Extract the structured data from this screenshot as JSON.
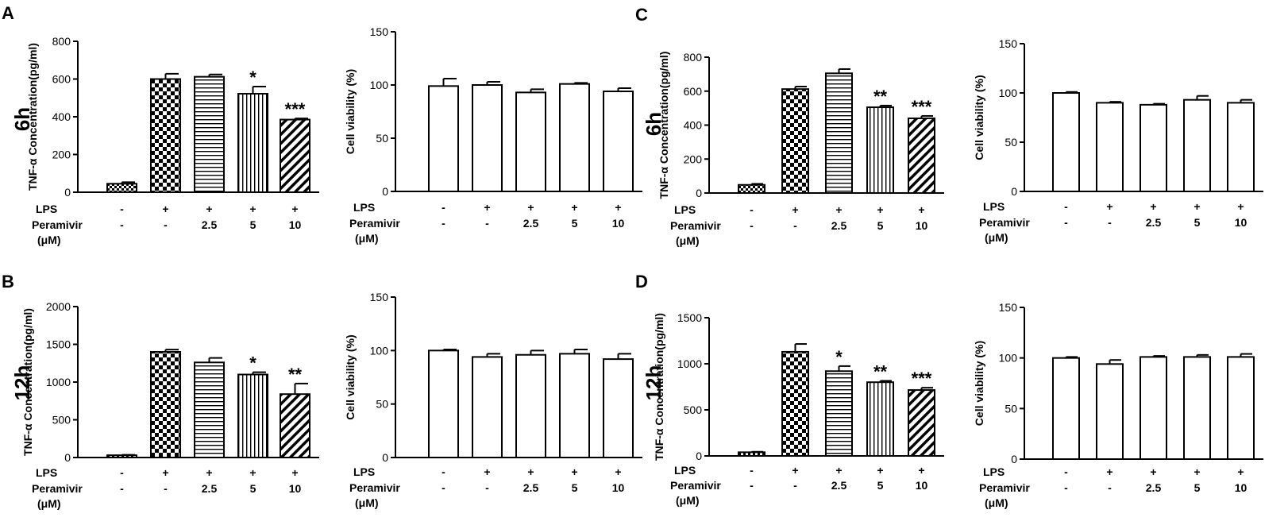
{
  "panels": [
    {
      "letter": "A",
      "time": "6h"
    },
    {
      "letter": "C",
      "time": "6h"
    },
    {
      "letter": "B",
      "time": "12h"
    },
    {
      "letter": "D",
      "time": "12h"
    }
  ],
  "row_labels": {
    "lps": "LPS",
    "peramivir": "Peramivir",
    "unit": "(μM)",
    "lps_values": [
      "-",
      "+",
      "+",
      "+",
      "+"
    ],
    "peramivir_values": [
      "-",
      "-",
      "2.5",
      "5",
      "10"
    ]
  },
  "chart_data": [
    {
      "type": "bar",
      "panel": "A",
      "time": "6h",
      "ylabel": "TNF-α Concentration(pg/ml)",
      "ylim": [
        0,
        800
      ],
      "yticks": [
        0,
        200,
        400,
        600,
        800
      ],
      "categories": [
        "-/-",
        "+/-",
        "+/2.5",
        "+/5",
        "+/10"
      ],
      "values": [
        45,
        600,
        612,
        522,
        385
      ],
      "errors": [
        8,
        28,
        12,
        38,
        6
      ],
      "significance": [
        "",
        "",
        "",
        "*",
        "***"
      ],
      "fills": [
        "dense-check",
        "check",
        "hstripe",
        "vstripe",
        "diag"
      ]
    },
    {
      "type": "bar",
      "panel": "A",
      "time": "6h",
      "ylabel": "Cell viability (%)",
      "ylim": [
        0,
        150
      ],
      "yticks": [
        0,
        50,
        100,
        150
      ],
      "categories": [
        "-/-",
        "+/-",
        "+/2.5",
        "+/5",
        "+/10"
      ],
      "values": [
        99,
        100,
        93,
        101,
        94
      ],
      "errors": [
        7,
        3,
        3,
        1,
        3
      ],
      "significance": [
        "",
        "",
        "",
        "",
        ""
      ],
      "fills": [
        "white",
        "white",
        "white",
        "white",
        "white"
      ]
    },
    {
      "type": "bar",
      "panel": "C",
      "time": "6h",
      "ylabel": "TNF-α Concentration(pg/ml)",
      "ylim": [
        0,
        800
      ],
      "yticks": [
        0,
        200,
        400,
        600,
        800
      ],
      "categories": [
        "-/-",
        "+/-",
        "+/2.5",
        "+/5",
        "+/10"
      ],
      "values": [
        48,
        612,
        705,
        505,
        440
      ],
      "errors": [
        6,
        15,
        25,
        10,
        14
      ],
      "significance": [
        "",
        "",
        "",
        "**",
        "***"
      ],
      "fills": [
        "dense-check",
        "check",
        "hstripe",
        "vstripe",
        "diag"
      ]
    },
    {
      "type": "bar",
      "panel": "C",
      "time": "6h",
      "ylabel": "Cell viability (%)",
      "ylim": [
        0,
        150
      ],
      "yticks": [
        0,
        50,
        100,
        150
      ],
      "categories": [
        "-/-",
        "+/-",
        "+/2.5",
        "+/5",
        "+/10"
      ],
      "values": [
        100,
        90,
        88,
        93,
        90
      ],
      "errors": [
        1,
        1,
        1,
        4,
        3
      ],
      "significance": [
        "",
        "",
        "",
        "",
        ""
      ],
      "fills": [
        "white",
        "white",
        "white",
        "white",
        "white"
      ]
    },
    {
      "type": "bar",
      "panel": "B",
      "time": "12h",
      "ylabel": "TNF-α Concentration(pg/ml)",
      "ylim": [
        0,
        2000
      ],
      "yticks": [
        0,
        500,
        1000,
        1500,
        2000
      ],
      "categories": [
        "-/-",
        "+/-",
        "+/2.5",
        "+/5",
        "+/10"
      ],
      "values": [
        30,
        1400,
        1260,
        1100,
        840
      ],
      "errors": [
        5,
        30,
        60,
        30,
        140
      ],
      "significance": [
        "",
        "",
        "",
        "*",
        "**"
      ],
      "fills": [
        "dense-check",
        "check",
        "hstripe",
        "vstripe",
        "diag"
      ]
    },
    {
      "type": "bar",
      "panel": "B",
      "time": "12h",
      "ylabel": "Cell viability (%)",
      "ylim": [
        0,
        150
      ],
      "yticks": [
        0,
        50,
        100,
        150
      ],
      "categories": [
        "-/-",
        "+/-",
        "+/2.5",
        "+/5",
        "+/10"
      ],
      "values": [
        100,
        94,
        96,
        97,
        92
      ],
      "errors": [
        1,
        3,
        4,
        4,
        5
      ],
      "significance": [
        "",
        "",
        "",
        "",
        ""
      ],
      "fills": [
        "white",
        "white",
        "white",
        "white",
        "white"
      ]
    },
    {
      "type": "bar",
      "panel": "D",
      "time": "12h",
      "ylabel": "TNF-α Concentration(pg/ml)",
      "ylim": [
        0,
        1500
      ],
      "yticks": [
        0,
        500,
        1000,
        1500
      ],
      "categories": [
        "-/-",
        "+/-",
        "+/2.5",
        "+/5",
        "+/10"
      ],
      "values": [
        40,
        1130,
        920,
        800,
        715
      ],
      "errors": [
        5,
        85,
        55,
        15,
        25
      ],
      "significance": [
        "",
        "",
        "*",
        "**",
        "***"
      ],
      "fills": [
        "dense-check",
        "check",
        "hstripe",
        "vstripe",
        "diag"
      ]
    },
    {
      "type": "bar",
      "panel": "D",
      "time": "12h",
      "ylabel": "Cell viability (%)",
      "ylim": [
        0,
        150
      ],
      "yticks": [
        0,
        50,
        100,
        150
      ],
      "categories": [
        "-/-",
        "+/-",
        "+/2.5",
        "+/5",
        "+/10"
      ],
      "values": [
        100,
        94,
        101,
        101,
        101
      ],
      "errors": [
        1,
        4,
        1,
        2,
        3
      ],
      "significance": [
        "",
        "",
        "",
        "",
        ""
      ],
      "fills": [
        "white",
        "white",
        "white",
        "white",
        "white"
      ]
    }
  ]
}
